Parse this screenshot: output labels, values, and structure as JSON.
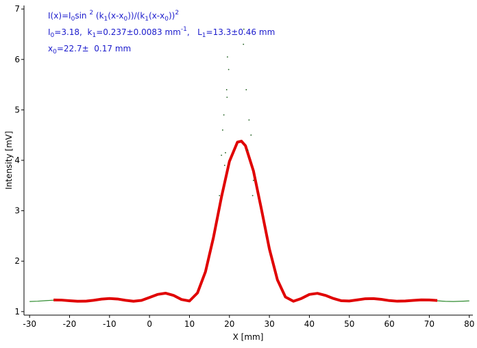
{
  "chart_data": {
    "type": "scatter",
    "x_label": "X [mm]",
    "y_label": "Intensity [mV]",
    "xlim": [
      -31.4,
      80.9
    ],
    "ylim": [
      0.93,
      7.07
    ],
    "xticks": [
      -30,
      -20,
      -10,
      0,
      10,
      20,
      30,
      40,
      50,
      60,
      70,
      80
    ],
    "yticks": [
      1,
      2,
      3,
      4,
      5,
      6,
      7
    ],
    "annotations": [
      [
        "I(x)=I",
        "0",
        "sin ",
        "2",
        " (k",
        "1",
        "(x-x",
        "0",
        "))/(k",
        "1",
        "(x-x",
        "0",
        "))",
        "2"
      ],
      [
        "I",
        "0",
        "=3.18,  k",
        "1",
        "=0.237±0.0083 mm",
        "-1",
        ",   L",
        "1",
        "=13.3±0.46 mm"
      ],
      [
        "x",
        "0",
        "=22.7±  0.17 mm"
      ]
    ],
    "series": [
      {
        "color": "#2e8b2e",
        "mode": "line",
        "x": [
          -30,
          -28,
          -26,
          -24,
          -22,
          -20,
          -18,
          -16,
          -14,
          -12,
          -10,
          -8,
          -6,
          -4,
          -2,
          0,
          2,
          4,
          6,
          8,
          10,
          12,
          14,
          16,
          18,
          20,
          22,
          23,
          24,
          26,
          28,
          30,
          32,
          34,
          36,
          38,
          40,
          42,
          44,
          46,
          48,
          50,
          52,
          54,
          56,
          58,
          60,
          62,
          64,
          66,
          68,
          70,
          72,
          74,
          76,
          78,
          80
        ],
        "values": [
          1.2,
          1.206,
          1.217,
          1.226,
          1.224,
          1.213,
          1.202,
          1.202,
          1.219,
          1.241,
          1.252,
          1.242,
          1.217,
          1.2,
          1.216,
          1.268,
          1.327,
          1.35,
          1.308,
          1.229,
          1.206,
          1.36,
          1.78,
          2.46,
          3.263,
          3.97,
          4.351,
          4.374,
          4.281,
          3.785,
          3.022,
          2.235,
          1.626,
          1.289,
          1.2,
          1.252,
          1.327,
          1.349,
          1.311,
          1.25,
          1.207,
          1.203,
          1.225,
          1.248,
          1.251,
          1.235,
          1.212,
          1.2,
          1.204,
          1.217,
          1.226,
          1.224,
          1.214,
          1.203,
          1.2,
          1.205,
          1.212
        ]
      },
      {
        "color": "#e00000",
        "mode": "line",
        "x": [
          -24,
          -22,
          -20,
          -18,
          -16,
          -14,
          -12,
          -10,
          -8,
          -6,
          -4,
          -2,
          0,
          2,
          4,
          6,
          8,
          10,
          12,
          14,
          16,
          18,
          20,
          22,
          23,
          24,
          26,
          28,
          30,
          32,
          34,
          36,
          38,
          40,
          42,
          44,
          46,
          48,
          50,
          52,
          54,
          56,
          58,
          60,
          62,
          64,
          66,
          68,
          70,
          72
        ],
        "values": [
          1.23,
          1.228,
          1.216,
          1.205,
          1.206,
          1.224,
          1.248,
          1.26,
          1.25,
          1.224,
          1.205,
          1.222,
          1.28,
          1.34,
          1.365,
          1.322,
          1.24,
          1.21,
          1.37,
          1.79,
          2.47,
          3.27,
          3.98,
          4.36,
          4.38,
          4.29,
          3.79,
          3.03,
          2.24,
          1.63,
          1.29,
          1.205,
          1.26,
          1.34,
          1.362,
          1.322,
          1.26,
          1.215,
          1.21,
          1.232,
          1.255,
          1.258,
          1.242,
          1.218,
          1.206,
          1.21,
          1.222,
          1.232,
          1.23,
          1.22
        ]
      },
      {
        "color": "#1f5f1f",
        "mode": "points",
        "x": [
          23.6,
          23.5,
          19.5,
          19.8,
          19.3,
          24.2,
          19.4,
          18.6,
          24.9,
          18.3,
          25.4,
          18,
          26,
          17.5,
          25.8,
          24.6,
          19,
          18.8
        ],
        "values": [
          6.6,
          6.3,
          6.05,
          5.8,
          5.4,
          5.4,
          5.25,
          4.9,
          4.8,
          4.6,
          4.5,
          4.1,
          3.6,
          3.3,
          3.3,
          4.2,
          4.15,
          3.9
        ]
      }
    ]
  }
}
